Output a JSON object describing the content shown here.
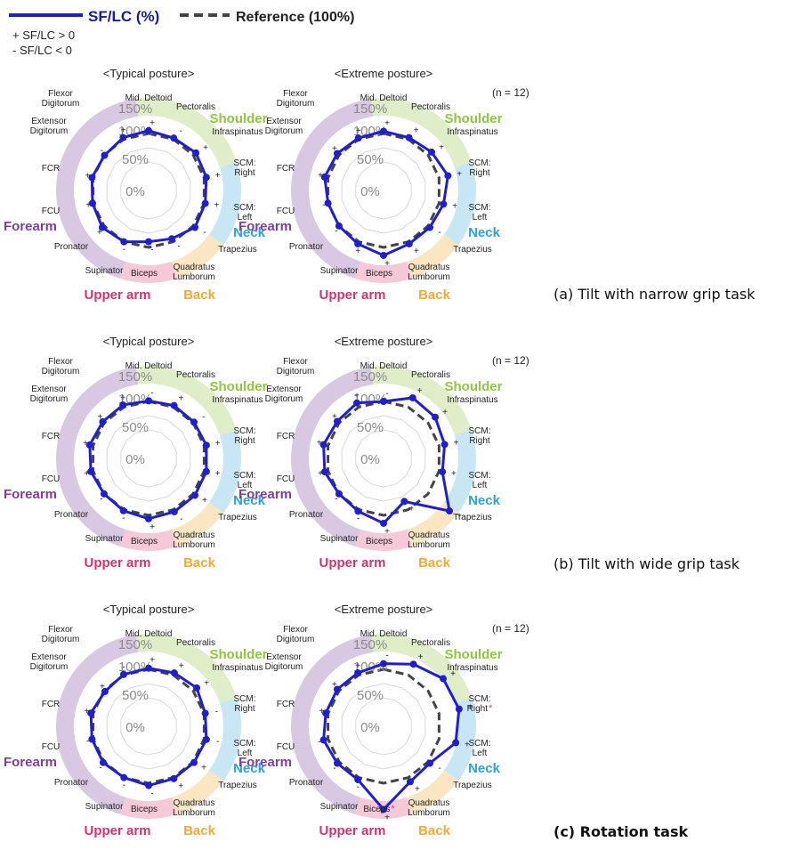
{
  "legend": {
    "series_label": "SF/LC (%)",
    "reference_label": "Reference (100%)",
    "sign_positive": "+ SF/LC > 0",
    "sign_negative": "- SF/LC < 0"
  },
  "sample_note": "(n = 12)",
  "muscles": [
    "Mid. Deltoid",
    "Pectoralis",
    "Infraspinatus",
    "SCM: Right",
    "SCM: Left",
    "Trapezius",
    "Quadratus Lumborum",
    "Biceps",
    "Supinator",
    "Pronator",
    "FCU",
    "FCR",
    "Extensor Digitorum",
    "Flexor Digitorum"
  ],
  "groups": [
    "Shoulder",
    "Neck",
    "Back",
    "Upper arm",
    "Forearm"
  ],
  "ring_labels": [
    "150%",
    "100%",
    "50%",
    "0%"
  ],
  "colors": {
    "series": "#1f1fcc",
    "reference": "#444444",
    "shoulder": "#8dc63f",
    "neck": "#2ba3d8",
    "back": "#f2a935",
    "upper_arm": "#d6336c",
    "forearm": "#7e3f98",
    "shoulder_band": "#dfeec8",
    "neck_band": "#c9e6f4",
    "back_band": "#fbe6c4",
    "upper_arm_band": "#f6c9d8",
    "forearm_band": "#d9c8e2",
    "star": "#c0479b"
  },
  "captions": [
    "(a) Tilt with narrow grip task",
    "(b) Tilt with wide grip task",
    "(c) Rotation task"
  ],
  "chart_data": [
    {
      "type": "radar",
      "task": "(a) Tilt with narrow grip task",
      "title": "<Typical posture>",
      "axes": [
        "Mid. Deltoid",
        "Pectoralis",
        "Infraspinatus",
        "SCM: Right",
        "SCM: Left",
        "Trapezius",
        "Quadratus Lumborum",
        "Biceps",
        "Supinator",
        "Pronator",
        "FCU",
        "FCR",
        "Extensor Digitorum",
        "Flexor Digitorum"
      ],
      "rlim": [
        0,
        150
      ],
      "reference": 100,
      "series": [
        {
          "name": "SF/LC (%)",
          "values": [
            105,
            102,
            106,
            104,
            102,
            104,
            94,
            90,
            100,
            104,
            101,
            102,
            99,
            103
          ]
        }
      ],
      "signs": [
        "+",
        "-",
        "+",
        "+",
        "+",
        "-",
        "-",
        "-",
        "-",
        "+",
        "+",
        "+",
        "-",
        "+"
      ],
      "stars": []
    },
    {
      "type": "radar",
      "task": "(a) Tilt with narrow grip task",
      "title": "<Extreme posture>",
      "axes": [
        "Mid. Deltoid",
        "Pectoralis",
        "Infraspinatus",
        "SCM: Right",
        "SCM: Left",
        "Trapezius",
        "Quadratus Lumborum",
        "Biceps",
        "Supinator",
        "Pronator",
        "FCU",
        "FCR",
        "Extensor Digitorum",
        "Flexor Digitorum"
      ],
      "rlim": [
        0,
        150
      ],
      "reference": 100,
      "series": [
        {
          "name": "SF/LC (%)",
          "values": [
            104,
            103,
            108,
            116,
            108,
            104,
            104,
            114,
            104,
            100,
            100,
            106,
            104,
            102
          ]
        }
      ],
      "signs": [
        "+",
        "+",
        "+",
        "+",
        "+",
        "-",
        "+",
        "+",
        "+",
        "-",
        "-",
        "+",
        "+",
        "+"
      ],
      "stars": []
    },
    {
      "type": "radar",
      "task": "(b) Tilt with wide grip task",
      "title": "<Typical posture>",
      "axes": [
        "Mid. Deltoid",
        "Pectoralis",
        "Infraspinatus",
        "SCM: Right",
        "SCM: Left",
        "Trapezius",
        "Quadratus Lumborum",
        "Biceps",
        "Supinator",
        "Pronator",
        "FCU",
        "FCR",
        "Extensor Digitorum",
        "Flexor Digitorum"
      ],
      "rlim": [
        0,
        150
      ],
      "reference": 100,
      "series": [
        {
          "name": "SF/LC (%)",
          "values": [
            101,
            103,
            102,
            104,
            104,
            104,
            104,
            106,
            102,
            100,
            104,
            106,
            103,
            104
          ]
        }
      ],
      "signs": [
        "-",
        "+",
        "-",
        "+",
        "+",
        "+",
        "-",
        "+",
        "-",
        "-",
        "+",
        "+",
        "+",
        "+"
      ],
      "stars": []
    },
    {
      "type": "radar",
      "task": "(b) Tilt with wide grip task",
      "title": "<Extreme posture>",
      "axes": [
        "Mid. Deltoid",
        "Pectoralis",
        "Infraspinatus",
        "SCM: Right",
        "SCM: Left",
        "Trapezius",
        "Quadratus Lumborum",
        "Biceps",
        "Supinator",
        "Pronator",
        "FCU",
        "FCR",
        "Extensor Digitorum",
        "Flexor Digitorum"
      ],
      "rlim": [
        0,
        150
      ],
      "reference": 100,
      "series": [
        {
          "name": "SF/LC (%)",
          "values": [
            100,
            118,
            116,
            110,
            106,
            148,
            84,
            114,
            103,
            100,
            106,
            108,
            104,
            108
          ]
        }
      ],
      "signs": [
        "-",
        "+",
        "+",
        "+",
        "+",
        "+",
        "+",
        "+",
        "-",
        "-",
        "+",
        "+",
        "+",
        "+"
      ],
      "stars": []
    },
    {
      "type": "radar",
      "task": "(c) Rotation task",
      "title": "<Typical posture>",
      "axes": [
        "Mid. Deltoid",
        "Pectoralis",
        "Infraspinatus",
        "SCM: Right",
        "SCM: Left",
        "Trapezius",
        "Quadratus Lumborum",
        "Biceps",
        "Supinator",
        "Pronator",
        "FCU",
        "FCR",
        "Extensor Digitorum",
        "Flexor Digitorum"
      ],
      "rlim": [
        0,
        150
      ],
      "reference": 100,
      "series": [
        {
          "name": "SF/LC (%)",
          "values": [
            102,
            104,
            108,
            102,
            104,
            102,
            102,
            104,
            100,
            102,
            102,
            104,
            98,
            101
          ]
        }
      ],
      "signs": [
        "+",
        "+",
        "+",
        "-",
        "-",
        "+",
        "+",
        "-",
        "-",
        "-",
        "-",
        "+",
        "+",
        "-"
      ],
      "stars": []
    },
    {
      "type": "radar",
      "task": "(c) Rotation task",
      "title": "<Extreme posture>",
      "axes": [
        "Mid. Deltoid",
        "Pectoralis",
        "Infraspinatus",
        "SCM: Right",
        "SCM: Left",
        "Trapezius",
        "Quadratus Lumborum",
        "Biceps",
        "Supinator",
        "Pronator",
        "FCU",
        "FCR",
        "Extensor Digitorum",
        "Flexor Digitorum"
      ],
      "rlim": [
        0,
        150
      ],
      "reference": 100,
      "series": [
        {
          "name": "SF/LC (%)",
          "values": [
            110,
            121,
            134,
            136,
            130,
            104,
            108,
            146,
            104,
            104,
            108,
            104,
            104,
            104
          ]
        }
      ],
      "signs": [
        "-",
        "+",
        "+",
        "+",
        "+",
        "-",
        "+",
        "+",
        "-",
        "-",
        "-",
        "+",
        "+",
        "+"
      ],
      "stars": [
        "SCM: Right",
        "Biceps"
      ]
    }
  ]
}
